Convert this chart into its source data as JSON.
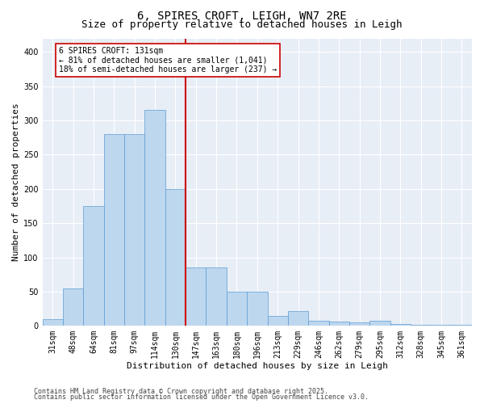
{
  "title1": "6, SPIRES CROFT, LEIGH, WN7 2RE",
  "title2": "Size of property relative to detached houses in Leigh",
  "xlabel": "Distribution of detached houses by size in Leigh",
  "ylabel": "Number of detached properties",
  "categories": [
    "31sqm",
    "48sqm",
    "64sqm",
    "81sqm",
    "97sqm",
    "114sqm",
    "130sqm",
    "147sqm",
    "163sqm",
    "180sqm",
    "196sqm",
    "213sqm",
    "229sqm",
    "246sqm",
    "262sqm",
    "279sqm",
    "295sqm",
    "312sqm",
    "328sqm",
    "345sqm",
    "361sqm"
  ],
  "values": [
    10,
    55,
    175,
    280,
    280,
    315,
    200,
    85,
    85,
    50,
    50,
    15,
    22,
    7,
    6,
    5,
    7,
    3,
    1,
    1,
    1
  ],
  "bar_color": "#BDD7EE",
  "bar_edge_color": "#5B9BD5",
  "vline_color": "#CC0000",
  "annotation_text": "6 SPIRES CROFT: 131sqm\n← 81% of detached houses are smaller (1,041)\n18% of semi-detached houses are larger (237) →",
  "annotation_box_color": "#CC0000",
  "annotation_box_bg": "#FFFFFF",
  "ylim": [
    0,
    420
  ],
  "yticks": [
    0,
    50,
    100,
    150,
    200,
    250,
    300,
    350,
    400
  ],
  "footer1": "Contains HM Land Registry data © Crown copyright and database right 2025.",
  "footer2": "Contains public sector information licensed under the Open Government Licence v3.0.",
  "bg_color": "#E8EEF6",
  "title_fontsize": 10,
  "subtitle_fontsize": 9,
  "axis_label_fontsize": 8,
  "tick_fontsize": 7,
  "annot_fontsize": 7,
  "footer_fontsize": 6
}
